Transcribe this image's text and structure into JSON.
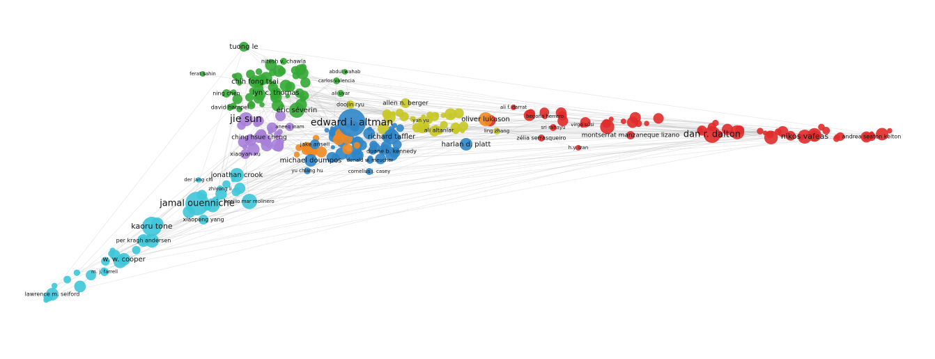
{
  "nodes": [
    {
      "label": "tuong le",
      "color": "#35a835"
    },
    {
      "label": "nitesh v. chawla",
      "color": "#35a835"
    },
    {
      "label": "ferat sahin",
      "color": "#35a835"
    },
    {
      "label": "abdul wahab",
      "color": "#35a835"
    },
    {
      "label": "carlos valencia",
      "color": "#35a835"
    },
    {
      "label": "chih fong tsai",
      "color": "#35a835"
    },
    {
      "label": "lyn c. thomas",
      "color": "#35a835"
    },
    {
      "label": "ali uyar",
      "color": "#35a835"
    },
    {
      "label": "ning chen",
      "color": "#35a835"
    },
    {
      "label": "allen n. berger",
      "color": "#c8c826"
    },
    {
      "label": "doojin ryu",
      "color": "#c8c826"
    },
    {
      "label": "david hampel",
      "color": "#35a835"
    },
    {
      "label": "éric séverin",
      "color": "#35a835"
    },
    {
      "label": "ali f. darrat",
      "color": "#e02b2b"
    },
    {
      "label": "begoña herrero",
      "color": "#e02b2b"
    },
    {
      "label": "oliver lukason",
      "color": "#f08a24"
    },
    {
      "label": "jie sun",
      "color": "#a77fd8"
    },
    {
      "label": "edward i. altman",
      "color": "#2f86c9"
    },
    {
      "label": "yan yu",
      "color": "#c8c826"
    },
    {
      "label": "aneeq inam",
      "color": "#a77fd8"
    },
    {
      "label": "virgo süsi",
      "color": "#e02b2b"
    },
    {
      "label": "sri rahayu",
      "color": "#e02b2b"
    },
    {
      "label": "ali altanlar",
      "color": "#c8c826"
    },
    {
      "label": "ling zhang",
      "color": "#c8c826"
    },
    {
      "label": "richard taffler",
      "color": "#2f86c9"
    },
    {
      "label": "montserrat manzaneque lizano",
      "color": "#e02b2b"
    },
    {
      "label": "dan r. dalton",
      "color": "#e02b2b"
    },
    {
      "label": "nikos vafeas",
      "color": "#e02b2b"
    },
    {
      "label": "andrea seaton kelton",
      "color": "#e02b2b"
    },
    {
      "label": "ching hsue cheng",
      "color": "#a77fd8"
    },
    {
      "label": "zélia serrasqueiro",
      "color": "#e02b2b"
    },
    {
      "label": "harlan d. platt",
      "color": "#2f86c9"
    },
    {
      "label": "jake ansell",
      "color": "#2f86c9"
    },
    {
      "label": "h.y. izan",
      "color": "#e02b2b"
    },
    {
      "label": "duane b. kennedy",
      "color": "#2f86c9"
    },
    {
      "label": "xiaoyan xu",
      "color": "#a77fd8"
    },
    {
      "label": "michael doumpos",
      "color": "#2f86c9"
    },
    {
      "label": "donald w. meucher",
      "color": "#2f86c9"
    },
    {
      "label": "yu chiang hu",
      "color": "#2f86c9"
    },
    {
      "label": "cornelius j. casey",
      "color": "#2f86c9"
    },
    {
      "label": "jonathan crook",
      "color": "#3ec6d8"
    },
    {
      "label": "der jang chi",
      "color": "#3ec6d8"
    },
    {
      "label": "zhiyong li",
      "color": "#3ec6d8"
    },
    {
      "label": "jamal ouenniche",
      "color": "#3ec6d8"
    },
    {
      "label": "cecilio mar molinero",
      "color": "#3ec6d8"
    },
    {
      "label": "kaoru tone",
      "color": "#3ec6d8"
    },
    {
      "label": "xiaopeng yang",
      "color": "#3ec6d8"
    },
    {
      "label": "per kragh andersen",
      "color": "#3ec6d8"
    },
    {
      "label": "w. w. cooper",
      "color": "#3ec6d8"
    },
    {
      "label": "m. j. farrell",
      "color": "#3ec6d8"
    },
    {
      "label": "lawrence m. seiford",
      "color": "#3ec6d8"
    }
  ]
}
